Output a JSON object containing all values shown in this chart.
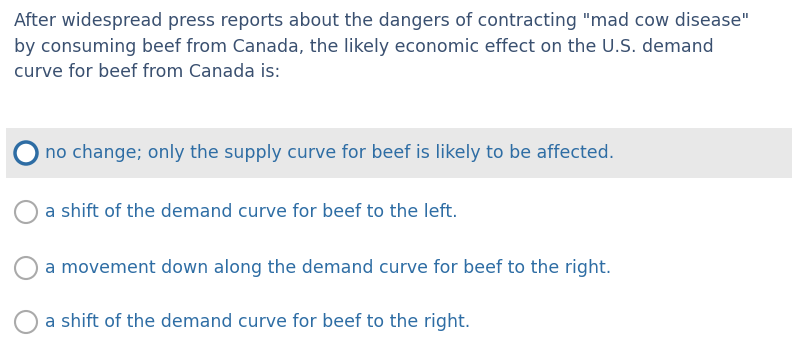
{
  "question": "After widespread press reports about the dangers of contracting \"mad cow disease\"\nby consuming beef from Canada, the likely economic effect on the U.S. demand\ncurve for beef from Canada is:",
  "options": [
    "no change; only the supply curve for beef is likely to be affected.",
    "a shift of the demand curve for beef to the left.",
    "a movement down along the demand curve for beef to the right.",
    "a shift of the demand curve for beef to the right."
  ],
  "highlighted_index": 0,
  "bg_color": "#ffffff",
  "highlight_color": "#e8e8e8",
  "question_text_color": "#3a5070",
  "option_text_color": "#2e6da4",
  "circle_color_highlighted": "#2e6da4",
  "circle_color_normal": "#aaaaaa",
  "question_fontsize": 12.5,
  "option_fontsize": 12.5
}
